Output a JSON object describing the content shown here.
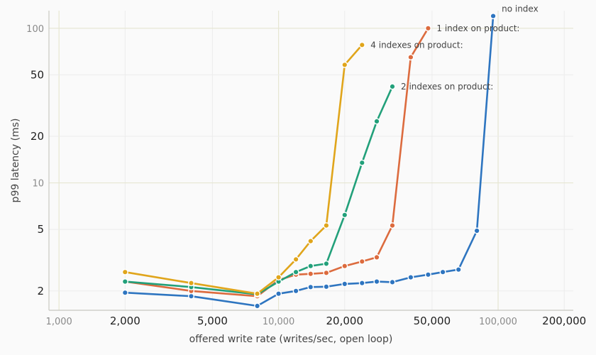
{
  "chart_data": {
    "type": "line",
    "title": "",
    "xlabel": "offered write rate (writes/sec, open loop)",
    "ylabel": "p99 latency (ms)",
    "x_scale": "log",
    "y_scale": "log",
    "xlim": [
      900,
      220000
    ],
    "ylim": [
      1.5,
      130
    ],
    "x_ticks": [
      {
        "value": 1000,
        "label": "1,000",
        "major": false
      },
      {
        "value": 2000,
        "label": "2,000",
        "major": true
      },
      {
        "value": 5000,
        "label": "5,000",
        "major": true
      },
      {
        "value": 10000,
        "label": "10,000",
        "major": false
      },
      {
        "value": 20000,
        "label": "20,000",
        "major": true
      },
      {
        "value": 50000,
        "label": "50,000",
        "major": true
      },
      {
        "value": 100000,
        "label": "100,000",
        "major": false
      },
      {
        "value": 200000,
        "label": "200,000",
        "major": true
      }
    ],
    "y_ticks": [
      {
        "value": 2,
        "label": "2",
        "major": true
      },
      {
        "value": 5,
        "label": "5",
        "major": true
      },
      {
        "value": 10,
        "label": "10",
        "major": false
      },
      {
        "value": 20,
        "label": "20",
        "major": true
      },
      {
        "value": 50,
        "label": "50",
        "major": true
      },
      {
        "value": 100,
        "label": "100",
        "major": false
      }
    ],
    "grid": true,
    "legend": "none (direct labels at line ends)",
    "series": [
      {
        "name": "no index",
        "color": "#2e75c0",
        "x": [
          2000,
          4000,
          8000,
          10000,
          12000,
          14000,
          16500,
          20000,
          24000,
          28000,
          33000,
          40000,
          48000,
          56000,
          66000,
          80000,
          95000
        ],
        "y": [
          1.95,
          1.85,
          1.6,
          1.92,
          2.0,
          2.12,
          2.13,
          2.22,
          2.25,
          2.3,
          2.28,
          2.45,
          2.55,
          2.65,
          2.75,
          4.9,
          120
        ]
      },
      {
        "name": "1 index on product:",
        "color": "#dc6b3e",
        "x": [
          2000,
          4000,
          8000,
          10000,
          12000,
          14000,
          16500,
          20000,
          24000,
          28000,
          33000,
          40000,
          48000
        ],
        "y": [
          2.3,
          2.0,
          1.85,
          2.35,
          2.55,
          2.58,
          2.62,
          2.9,
          3.1,
          3.3,
          5.3,
          65,
          100
        ]
      },
      {
        "name": "2 indexes on product:",
        "color": "#22a07a",
        "x": [
          2000,
          4000,
          8000,
          10000,
          12000,
          14000,
          16500,
          20000,
          24000,
          28000,
          33000
        ],
        "y": [
          2.3,
          2.12,
          1.9,
          2.3,
          2.65,
          2.9,
          3.0,
          6.2,
          13.5,
          25,
          42
        ]
      },
      {
        "name": "4 indexes on product:",
        "color": "#e0a51b",
        "x": [
          2000,
          4000,
          8000,
          10000,
          12000,
          14000,
          16500,
          20000,
          24000
        ],
        "y": [
          2.65,
          2.25,
          1.92,
          2.45,
          3.2,
          4.2,
          5.3,
          58,
          78
        ]
      }
    ]
  }
}
